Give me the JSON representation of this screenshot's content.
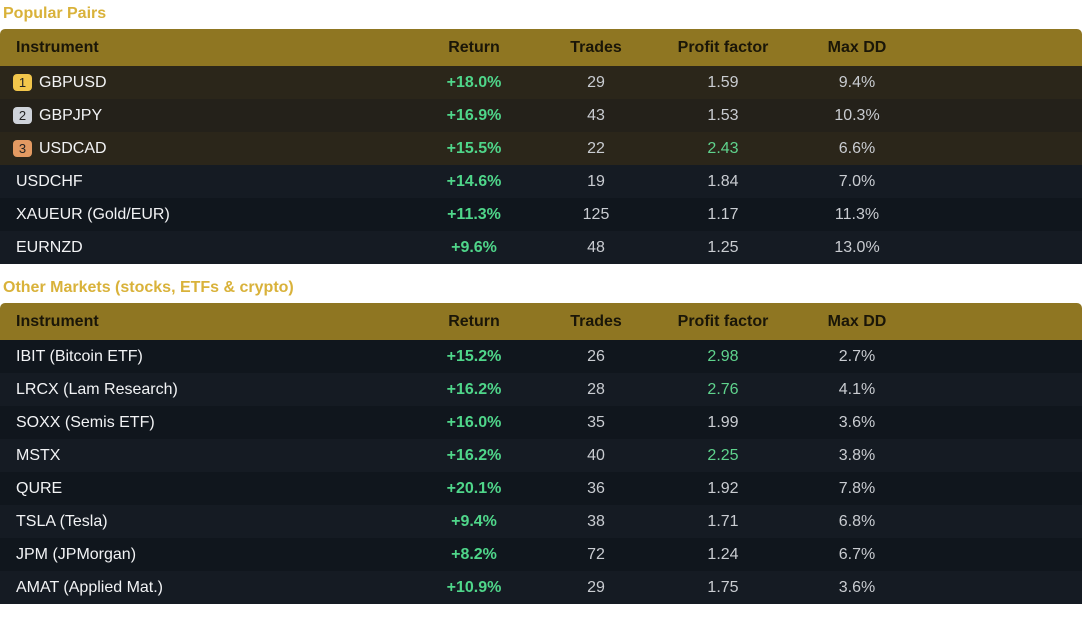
{
  "sections": [
    {
      "title": "Popular Pairs",
      "headers": [
        "Instrument",
        "Return",
        "Trades",
        "Profit factor",
        "Max DD"
      ],
      "rows": [
        {
          "rank": "1",
          "rank_color": "#f2c64b",
          "cells": [
            "GBPUSD",
            "+18.0%",
            "29",
            "1.59",
            "9.4%"
          ]
        },
        {
          "rank": "2",
          "rank_color": "#cfd3da",
          "cells": [
            "GBPJPY",
            "+16.9%",
            "43",
            "1.53",
            "10.3%"
          ]
        },
        {
          "rank": "3",
          "rank_color": "#e39a62",
          "profit_color": "#5fd38d",
          "cells": [
            "USDCAD",
            "+15.5%",
            "22",
            "2.43",
            "6.6%"
          ]
        },
        {
          "cells": [
            "USDCHF",
            "+14.6%",
            "19",
            "1.84",
            "7.0%"
          ]
        },
        {
          "cells": [
            "XAUEUR (Gold/EUR)",
            "+11.3%",
            "125",
            "1.17",
            "11.3%"
          ]
        },
        {
          "cells": [
            "EURNZD",
            "+9.6%",
            "48",
            "1.25",
            "13.0%"
          ]
        }
      ]
    },
    {
      "title": "Other Markets (stocks, ETFs & crypto)",
      "headers": [
        "Instrument",
        "Return",
        "Trades",
        "Profit factor",
        "Max DD"
      ],
      "rows": [
        {
          "profit_color": "#5fd38d",
          "cells": [
            "IBIT (Bitcoin ETF)",
            "+15.2%",
            "26",
            "2.98",
            "2.7%"
          ]
        },
        {
          "profit_color": "#5fd38d",
          "cells": [
            "LRCX (Lam Research)",
            "+16.2%",
            "28",
            "2.76",
            "4.1%"
          ]
        },
        {
          "cells": [
            "SOXX (Semis ETF)",
            "+16.0%",
            "35",
            "1.99",
            "3.6%"
          ]
        },
        {
          "profit_color": "#5fd38d",
          "cells": [
            "MSTX",
            "+16.2%",
            "40",
            "2.25",
            "3.8%"
          ]
        },
        {
          "cells": [
            "QURE",
            "+20.1%",
            "36",
            "1.92",
            "7.8%"
          ]
        },
        {
          "cells": [
            "TSLA (Tesla)",
            "+9.4%",
            "38",
            "1.71",
            "6.8%"
          ]
        },
        {
          "cells": [
            "JPM (JPMorgan)",
            "+8.2%",
            "72",
            "1.24",
            "6.7%"
          ]
        },
        {
          "cells": [
            "AMAT (Applied Mat.)",
            "+10.9%",
            "29",
            "1.75",
            "3.6%"
          ]
        }
      ]
    }
  ]
}
